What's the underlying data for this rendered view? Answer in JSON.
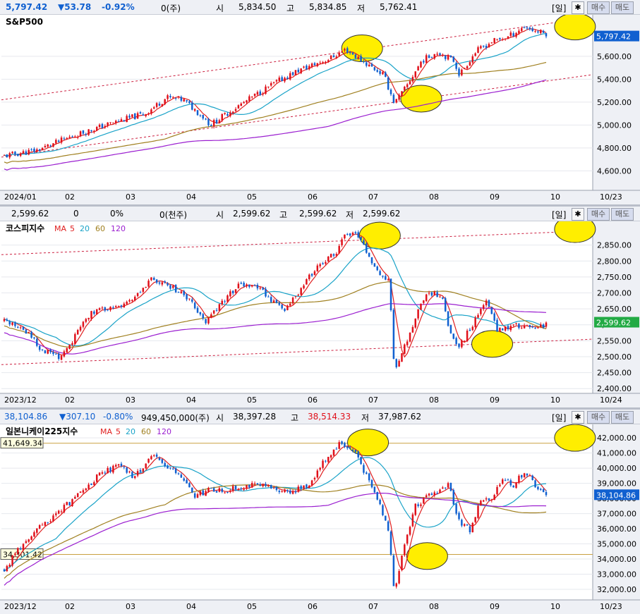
{
  "panels": [
    {
      "id": "spx",
      "quote": {
        "last": "5,797.42",
        "change": "▼53.78",
        "pct": "-0.92%",
        "volume": "0(주)",
        "open_label": "시",
        "open": "5,834.50",
        "high_label": "고",
        "high": "5,834.85",
        "low_label": "저",
        "low": "5,762.41"
      },
      "toolbar": {
        "period": "[일]",
        "buy": "매수",
        "sell": "매도"
      },
      "chart_data": {
        "type": "candlestick",
        "title": "S&P500",
        "legend": [],
        "last_label": "5,797.42",
        "date_label": "10/23",
        "xlabels": [
          "2024/01",
          "02",
          "03",
          "04",
          "05",
          "06",
          "07",
          "08",
          "09",
          "10"
        ],
        "yticks": [
          "5,600.00",
          "5,400.00",
          "5,200.00",
          "5,000.00",
          "4,800.00",
          "4,600.00"
        ],
        "ytick_values": [
          5600,
          5400,
          5200,
          5000,
          4800,
          4600
        ],
        "ylim": [
          4430,
          5950
        ],
        "anchors": [
          [
            0,
            4730
          ],
          [
            0.06,
            4780
          ],
          [
            0.13,
            4910
          ],
          [
            0.2,
            5020
          ],
          [
            0.26,
            5100
          ],
          [
            0.3,
            5240
          ],
          [
            0.33,
            5220
          ],
          [
            0.37,
            5060
          ],
          [
            0.38,
            5000
          ],
          [
            0.42,
            5130
          ],
          [
            0.47,
            5280
          ],
          [
            0.5,
            5370
          ],
          [
            0.54,
            5470
          ],
          [
            0.6,
            5580
          ],
          [
            0.63,
            5660
          ],
          [
            0.66,
            5560
          ],
          [
            0.7,
            5440
          ],
          [
            0.72,
            5190
          ],
          [
            0.74,
            5320
          ],
          [
            0.77,
            5560
          ],
          [
            0.8,
            5640
          ],
          [
            0.83,
            5560
          ],
          [
            0.84,
            5440
          ],
          [
            0.87,
            5640
          ],
          [
            0.9,
            5730
          ],
          [
            0.93,
            5770
          ],
          [
            0.96,
            5860
          ],
          [
            0.98,
            5820
          ],
          [
            1,
            5797
          ]
        ],
        "ma": [
          {
            "period": 5,
            "color": "#e02020",
            "lag": 5
          },
          {
            "period": 20,
            "color": "#1aa3c8",
            "lag": 20
          },
          {
            "period": 60,
            "color": "#a08020",
            "lag": 60
          },
          {
            "period": 120,
            "color": "#9b1fd0",
            "lag": 120
          }
        ],
        "trendlines": [
          {
            "color": "#cc2040",
            "dash": true,
            "from": [
              0,
              5220
            ],
            "to": [
              1,
              5940
            ]
          },
          {
            "color": "#cc2040",
            "dash": true,
            "from": [
              0,
              4720
            ],
            "to": [
              1,
              5440
            ]
          }
        ],
        "circles": [
          [
            0.61,
            5670
          ],
          [
            0.71,
            5230
          ],
          [
            0.97,
            5860
          ]
        ]
      }
    },
    {
      "id": "kospi",
      "quote": {
        "last": "2,599.62",
        "change": "0",
        "pct": "0%",
        "volume": "0(천주)",
        "open_label": "시",
        "open": "2,599.62",
        "high_label": "고",
        "high": "2,599.62",
        "low_label": "저",
        "low": "2,599.62"
      },
      "toolbar": {
        "period": "[일]",
        "buy": "매수",
        "sell": "매도"
      },
      "chart_data": {
        "type": "candlestick",
        "title": "코스피지수",
        "legend": [
          "MA",
          "5",
          "20",
          "60",
          "120"
        ],
        "last_label": "2,599.62",
        "date_label": "10/24",
        "xlabels": [
          "2023/12",
          "02",
          "03",
          "04",
          "05",
          "06",
          "07",
          "08",
          "09",
          "10"
        ],
        "yticks": [
          "2,850.00",
          "2,800.00",
          "2,750.00",
          "2,700.00",
          "2,650.00",
          "2,600.00",
          "2,550.00",
          "2,500.00",
          "2,450.00",
          "2,400.00"
        ],
        "ytick_values": [
          2850,
          2800,
          2750,
          2700,
          2650,
          2600,
          2550,
          2500,
          2450,
          2400
        ],
        "ylim": [
          2385,
          2920
        ],
        "anchors": [
          [
            0,
            2610
          ],
          [
            0.04,
            2580
          ],
          [
            0.07,
            2520
          ],
          [
            0.1,
            2500
          ],
          [
            0.13,
            2560
          ],
          [
            0.16,
            2640
          ],
          [
            0.2,
            2650
          ],
          [
            0.24,
            2680
          ],
          [
            0.27,
            2740
          ],
          [
            0.31,
            2720
          ],
          [
            0.34,
            2680
          ],
          [
            0.37,
            2610
          ],
          [
            0.4,
            2670
          ],
          [
            0.43,
            2720
          ],
          [
            0.46,
            2730
          ],
          [
            0.49,
            2680
          ],
          [
            0.52,
            2650
          ],
          [
            0.55,
            2720
          ],
          [
            0.58,
            2790
          ],
          [
            0.61,
            2820
          ],
          [
            0.63,
            2880
          ],
          [
            0.65,
            2880
          ],
          [
            0.67,
            2830
          ],
          [
            0.69,
            2760
          ],
          [
            0.71,
            2740
          ],
          [
            0.72,
            2460
          ],
          [
            0.74,
            2540
          ],
          [
            0.76,
            2630
          ],
          [
            0.78,
            2700
          ],
          [
            0.81,
            2690
          ],
          [
            0.82,
            2590
          ],
          [
            0.84,
            2530
          ],
          [
            0.86,
            2590
          ],
          [
            0.89,
            2680
          ],
          [
            0.91,
            2580
          ],
          [
            0.94,
            2600
          ],
          [
            0.97,
            2590
          ],
          [
            1,
            2599
          ]
        ],
        "ma": [
          {
            "period": 5,
            "color": "#e02020",
            "lag": 5
          },
          {
            "period": 20,
            "color": "#1aa3c8",
            "lag": 20
          },
          {
            "period": 60,
            "color": "#a08020",
            "lag": 60
          },
          {
            "period": 120,
            "color": "#9b1fd0",
            "lag": 120
          }
        ],
        "trendlines": [
          {
            "color": "#cc2040",
            "dash": true,
            "from": [
              0,
              2820
            ],
            "to": [
              1,
              2895
            ]
          },
          {
            "color": "#cc2040",
            "dash": true,
            "from": [
              0,
              2475
            ],
            "to": [
              1,
              2555
            ]
          }
        ],
        "circles": [
          [
            0.64,
            2880
          ],
          [
            0.83,
            2540
          ],
          [
            0.97,
            2900
          ]
        ]
      }
    },
    {
      "id": "nikkei",
      "quote": {
        "last": "38,104.86",
        "change": "▼307.10",
        "pct": "-0.80%",
        "volume": "949,450,000(주)",
        "open_label": "시",
        "open": "38,397.28",
        "high_label": "고",
        "high": "38,514.33",
        "low_label": "저",
        "low": "37,987.62"
      },
      "toolbar": {
        "period": "[일]",
        "buy": "매수",
        "sell": "매도"
      },
      "chart_data": {
        "type": "candlestick",
        "title": "일본니케이225지수",
        "legend": [
          "MA",
          "5",
          "20",
          "60",
          "120"
        ],
        "last_label": "38,104.86",
        "date_label": "10/23",
        "hlines": [
          {
            "value": 41649.34,
            "label": "41,649.34"
          },
          {
            "value": 34301.42,
            "label": "34,301.42"
          }
        ],
        "xlabels": [
          "2023/12",
          "02",
          "03",
          "04",
          "05",
          "06",
          "07",
          "08",
          "09",
          "10"
        ],
        "yticks": [
          "42,000.00",
          "41,000.00",
          "40,000.00",
          "39,000.00",
          "38,000.00",
          "37,000.00",
          "36,000.00",
          "35,000.00",
          "34,000.00",
          "33,000.00",
          "32,000.00"
        ],
        "ytick_values": [
          42000,
          41000,
          40000,
          39000,
          38000,
          37000,
          36000,
          35000,
          34000,
          33000,
          32000
        ],
        "ylim": [
          31300,
          42800
        ],
        "anchors": [
          [
            0,
            33300
          ],
          [
            0.04,
            35300
          ],
          [
            0.08,
            36500
          ],
          [
            0.13,
            38000
          ],
          [
            0.17,
            39400
          ],
          [
            0.21,
            40200
          ],
          [
            0.24,
            39400
          ],
          [
            0.27,
            40800
          ],
          [
            0.3,
            40200
          ],
          [
            0.33,
            39300
          ],
          [
            0.35,
            38100
          ],
          [
            0.38,
            38600
          ],
          [
            0.41,
            38500
          ],
          [
            0.45,
            38900
          ],
          [
            0.49,
            38700
          ],
          [
            0.53,
            38500
          ],
          [
            0.56,
            38800
          ],
          [
            0.59,
            40500
          ],
          [
            0.62,
            41700
          ],
          [
            0.65,
            41000
          ],
          [
            0.67,
            39300
          ],
          [
            0.69,
            37900
          ],
          [
            0.71,
            35900
          ],
          [
            0.72,
            31800
          ],
          [
            0.74,
            35200
          ],
          [
            0.76,
            37600
          ],
          [
            0.79,
            38300
          ],
          [
            0.82,
            38900
          ],
          [
            0.84,
            36500
          ],
          [
            0.86,
            35900
          ],
          [
            0.88,
            38000
          ],
          [
            0.9,
            37800
          ],
          [
            0.92,
            39400
          ],
          [
            0.94,
            38900
          ],
          [
            0.96,
            39800
          ],
          [
            0.98,
            38900
          ],
          [
            1,
            38104
          ]
        ],
        "ma": [
          {
            "period": 5,
            "color": "#e02020",
            "lag": 5
          },
          {
            "period": 20,
            "color": "#1aa3c8",
            "lag": 20
          },
          {
            "period": 60,
            "color": "#a08020",
            "lag": 60
          },
          {
            "period": 120,
            "color": "#9b1fd0",
            "lag": 120
          }
        ],
        "trendlines": [],
        "circles": [
          [
            0.62,
            41700
          ],
          [
            0.72,
            34200
          ],
          [
            0.97,
            42000
          ]
        ]
      }
    }
  ],
  "colors": {
    "up": "#e0101a",
    "down": "#1060d0",
    "axis_bg": "#eef0f5",
    "grid": "#e6e8ee",
    "circle": "#ffee00",
    "highlight": "#ee44dd"
  },
  "icons": {
    "settings": "gear-icon"
  }
}
